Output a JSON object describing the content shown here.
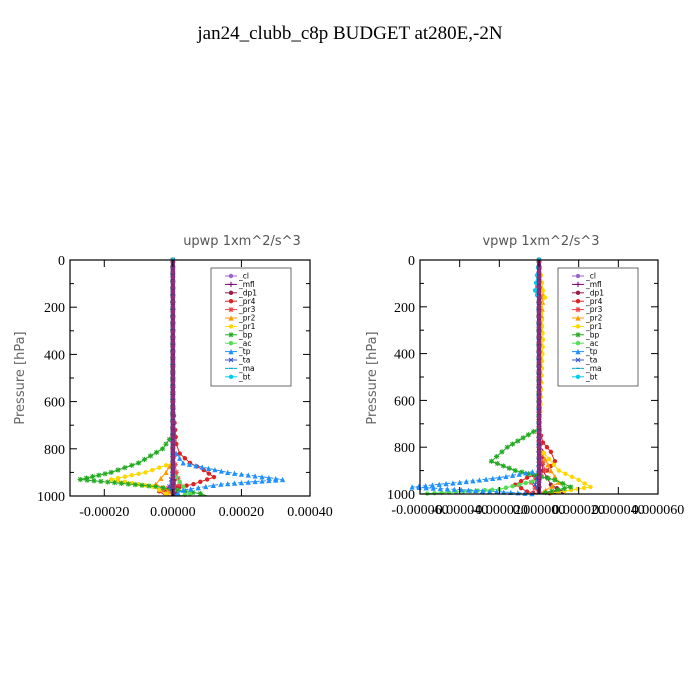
{
  "title": "jan24_clubb_c8p  BUDGET at280E,-2N",
  "ylabel": "Pressure [hPa]",
  "chart_data": [
    {
      "type": "line",
      "title": "upwp   1xm^2/s^3",
      "ylabel": "Pressure [hPa]",
      "xlim": [
        -0.0003,
        0.0004
      ],
      "ylim": [
        1000,
        0
      ],
      "xticks": [
        -0.0002,
        0.0,
        0.0002,
        0.0004
      ],
      "xtick_labels": [
        "-0.00020",
        "0.00000",
        "0.00020",
        "0.00040"
      ],
      "yticks": [
        0,
        200,
        400,
        600,
        800,
        1000
      ],
      "ytick_labels": [
        "0",
        "200",
        "400",
        "600",
        "800",
        "1000"
      ],
      "legend_position": "top-right",
      "series": [
        {
          "name": "_cl",
          "color": "#9966cc",
          "marker": "circle",
          "y": [
            0,
            200,
            500,
            800,
            900,
            950,
            1000
          ],
          "x": [
            0,
            0,
            0,
            0,
            0,
            0,
            0
          ]
        },
        {
          "name": "_mfl",
          "color": "#7a0077",
          "marker": "plus",
          "y": [
            0,
            300,
            600,
            800,
            900,
            1000
          ],
          "x": [
            0,
            0,
            0,
            0,
            0,
            0
          ]
        },
        {
          "name": "_dp1",
          "color": "#9b1b4a",
          "marker": "circle",
          "y": [
            0,
            400,
            800,
            900,
            960,
            990,
            1000
          ],
          "x": [
            0,
            0,
            0,
            4e-06,
            8e-06,
            1e-05,
            0
          ]
        },
        {
          "name": "_pr4",
          "color": "#dd2222",
          "marker": "circle",
          "y": [
            0,
            600,
            780,
            820,
            860,
            890,
            920,
            950,
            980,
            1000
          ],
          "x": [
            0,
            0,
            1e-05,
            2e-05,
            5e-05,
            9e-05,
            0.00012,
            6e-05,
            -4e-05,
            -2e-05
          ]
        },
        {
          "name": "_pr3",
          "color": "#ee4444",
          "marker": "star",
          "y": [
            0,
            800,
            900,
            950,
            975,
            1000
          ],
          "x": [
            0,
            0,
            1e-05,
            2e-05,
            -3e-05,
            -1e-05
          ]
        },
        {
          "name": "_pr2",
          "color": "#ff9900",
          "marker": "triangle",
          "y": [
            0,
            850,
            900,
            950,
            980,
            1000
          ],
          "x": [
            0,
            0,
            -2e-05,
            -5e-05,
            -1e-05,
            0
          ]
        },
        {
          "name": "_pr1",
          "color": "#ffd700",
          "marker": "circle",
          "y": [
            0,
            860,
            900,
            930,
            960,
            990,
            1000
          ],
          "x": [
            0,
            0,
            -8e-05,
            -0.00018,
            -6e-05,
            -2e-05,
            0
          ]
        },
        {
          "name": "_bp",
          "color": "#22aa22",
          "marker": "star",
          "y": [
            0,
            740,
            800,
            860,
            900,
            930,
            960,
            990,
            1000
          ],
          "x": [
            0,
            0,
            -3e-05,
            -0.0001,
            -0.00018,
            -0.00027,
            -5e-05,
            8e-05,
            0.0001
          ]
        },
        {
          "name": "_ac",
          "color": "#55dd55",
          "marker": "circle",
          "y": [
            0,
            900,
            960,
            990,
            1000
          ],
          "x": [
            0,
            0,
            3e-05,
            5e-05,
            2e-05
          ]
        },
        {
          "name": "_tp",
          "color": "#1e90ff",
          "marker": "triangle",
          "y": [
            0,
            800,
            860,
            900,
            930,
            950,
            975,
            1000
          ],
          "x": [
            0,
            0,
            3e-05,
            0.00016,
            0.00032,
            0.00014,
            3e-05,
            0
          ]
        },
        {
          "name": "_ta",
          "color": "#3355cc",
          "marker": "cross",
          "y": [
            0,
            900,
            960,
            1000
          ],
          "x": [
            0,
            0,
            -1e-05,
            0
          ]
        },
        {
          "name": "_ma",
          "color": "#00aacc",
          "marker": "dash",
          "y": [
            0,
            1000
          ],
          "x": [
            0,
            0
          ]
        },
        {
          "name": "_bt",
          "color": "#00ccee",
          "marker": "circle",
          "y": [
            0,
            1000
          ],
          "x": [
            0,
            0
          ]
        }
      ]
    },
    {
      "type": "line",
      "title": "vpwp   1xm^2/s^3",
      "ylabel": "Pressure [hPa]",
      "xlim": [
        -6e-05,
        6e-05
      ],
      "ylim": [
        1000,
        0
      ],
      "xticks": [
        -6e-05,
        -4e-05,
        -2e-05,
        0.0,
        2e-05,
        4e-05,
        6e-05
      ],
      "xtick_labels": [
        "-0.000060",
        "-0.000040",
        "-0.000020",
        "0.000000",
        "0.000020",
        "0.000040",
        "0.000060"
      ],
      "yticks": [
        0,
        200,
        400,
        600,
        800,
        1000
      ],
      "ytick_labels": [
        "0",
        "200",
        "400",
        "600",
        "800",
        "1000"
      ],
      "legend_position": "top-right",
      "series": [
        {
          "name": "_cl",
          "color": "#9966cc",
          "marker": "circle",
          "y": [
            0,
            140,
            160,
            200,
            1000
          ],
          "x": [
            0,
            -8e-07,
            1e-06,
            0,
            0
          ]
        },
        {
          "name": "_mfl",
          "color": "#7a0077",
          "marker": "plus",
          "y": [
            0,
            1000
          ],
          "x": [
            0,
            0
          ]
        },
        {
          "name": "_dp1",
          "color": "#9b1b4a",
          "marker": "circle",
          "y": [
            0,
            700,
            900,
            960,
            990,
            1000
          ],
          "x": [
            0,
            0,
            2e-06,
            6e-06,
            1.2e-05,
            2e-06
          ]
        },
        {
          "name": "_pr4",
          "color": "#dd2222",
          "marker": "circle",
          "y": [
            0,
            720,
            780,
            820,
            860,
            900,
            930,
            960,
            990,
            1000
          ],
          "x": [
            0,
            0,
            2e-06,
            6e-06,
            8e-06,
            4e-06,
            -6e-06,
            -1.2e-05,
            -6e-06,
            0
          ]
        },
        {
          "name": "_pr3",
          "color": "#ee4444",
          "marker": "star",
          "y": [
            0,
            800,
            900,
            950,
            1000
          ],
          "x": [
            0,
            0,
            3e-06,
            -4e-06,
            0
          ]
        },
        {
          "name": "_pr2",
          "color": "#ff9900",
          "marker": "triangle",
          "y": [
            0,
            150,
            300,
            800,
            900,
            950,
            1000
          ],
          "x": [
            0,
            2e-06,
            1e-06,
            0,
            6e-06,
            1e-05,
            0
          ]
        },
        {
          "name": "_pr1",
          "color": "#ffd700",
          "marker": "circle",
          "y": [
            0,
            130,
            160,
            200,
            340,
            800,
            900,
            940,
            970,
            1000
          ],
          "x": [
            0,
            2e-06,
            3e-06,
            1e-06,
            2e-06,
            0,
            1e-05,
            2e-05,
            2.6e-05,
            3e-06
          ]
        },
        {
          "name": "_bp",
          "color": "#22aa22",
          "marker": "star",
          "y": [
            0,
            720,
            760,
            800,
            860,
            900,
            940,
            970,
            1000
          ],
          "x": [
            0,
            0,
            -8e-06,
            -1.6e-05,
            -2.4e-05,
            -1.2e-05,
            8e-06,
            1.6e-05,
            0
          ]
        },
        {
          "name": "_ac",
          "color": "#55dd55",
          "marker": "circle",
          "y": [
            0,
            940,
            980,
            1000
          ],
          "x": [
            0,
            0,
            -2e-05,
            -6e-05
          ]
        },
        {
          "name": "_tp",
          "color": "#1e90ff",
          "marker": "triangle",
          "y": [
            0,
            900,
            930,
            950,
            970,
            1000
          ],
          "x": [
            0,
            0,
            -2e-05,
            -4e-05,
            -6.4e-05,
            0
          ]
        },
        {
          "name": "_ta",
          "color": "#3355cc",
          "marker": "cross",
          "y": [
            0,
            900,
            960,
            1000
          ],
          "x": [
            0,
            0,
            -2e-06,
            0
          ]
        },
        {
          "name": "_ma",
          "color": "#00aacc",
          "marker": "dash",
          "y": [
            0,
            1000
          ],
          "x": [
            0,
            0
          ]
        },
        {
          "name": "_bt",
          "color": "#00ccee",
          "marker": "circle",
          "y": [
            0,
            130,
            150,
            170,
            1000
          ],
          "x": [
            0,
            -2e-06,
            -1e-06,
            0,
            0
          ]
        }
      ]
    }
  ]
}
